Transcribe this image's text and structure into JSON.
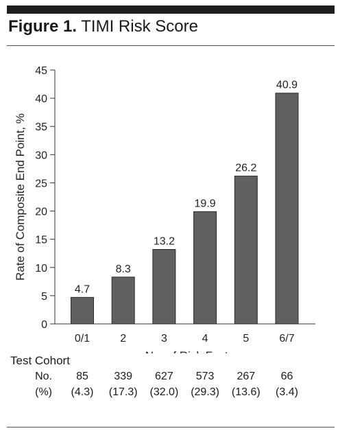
{
  "figure": {
    "label": "Figure 1.",
    "title": "TIMI Risk Score"
  },
  "chart_data": {
    "type": "bar",
    "categories": [
      "0/1",
      "2",
      "3",
      "4",
      "5",
      "6/7"
    ],
    "values": [
      4.7,
      8.3,
      13.2,
      19.9,
      26.2,
      40.9
    ],
    "data_labels": [
      "4.7",
      "8.3",
      "13.2",
      "19.9",
      "26.2",
      "40.9"
    ],
    "title": "",
    "xlabel": "No. of Risk Factors",
    "ylabel": "Rate of Composite End Point, %",
    "ylim": [
      0,
      45
    ],
    "yticks": [
      0,
      5,
      10,
      15,
      20,
      25,
      30,
      35,
      40,
      45
    ],
    "grid": false,
    "bar_color": "#606060"
  },
  "cohort": {
    "heading": "Test Cohort",
    "row_no_label": "No.",
    "row_pct_label": "(%)",
    "counts": [
      "85",
      "339",
      "627",
      "573",
      "267",
      "66"
    ],
    "percents": [
      "(4.3)",
      "(17.3)",
      "(32.0)",
      "(29.3)",
      "(13.6)",
      "(3.4)"
    ]
  }
}
